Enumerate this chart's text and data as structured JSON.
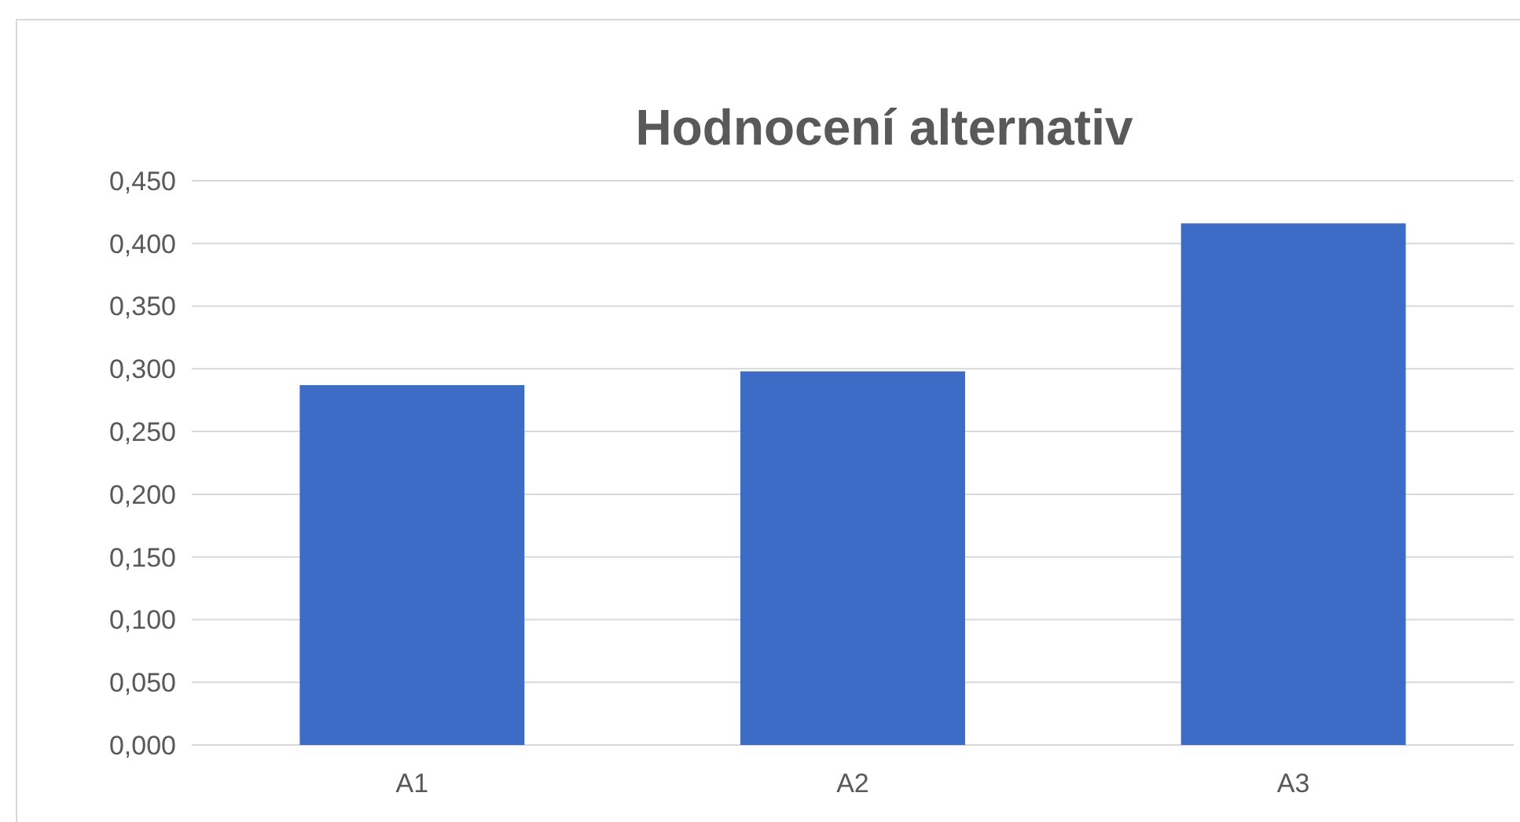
{
  "chart_data": {
    "type": "bar",
    "title": "Hodnocení alternativ",
    "categories": [
      "A1",
      "A2",
      "A3"
    ],
    "values": [
      0.287,
      0.298,
      0.416
    ],
    "color": "#3d6cc6",
    "ylim": [
      0,
      0.45
    ],
    "yticks": [
      {
        "value": 0,
        "label": "0,000"
      },
      {
        "value": 0.05,
        "label": "0,050"
      },
      {
        "value": 0.1,
        "label": "0,100"
      },
      {
        "value": 0.15,
        "label": "0,150"
      },
      {
        "value": 0.2,
        "label": "0,200"
      },
      {
        "value": 0.25,
        "label": "0,250"
      },
      {
        "value": 0.3,
        "label": "0,300"
      },
      {
        "value": 0.35,
        "label": "0,350"
      },
      {
        "value": 0.4,
        "label": "0,400"
      },
      {
        "value": 0.45,
        "label": "0,450"
      }
    ],
    "grid": "y"
  }
}
